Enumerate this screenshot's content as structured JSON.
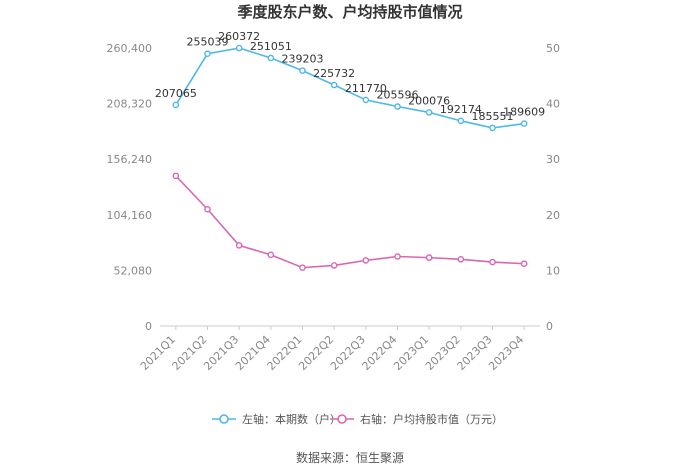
{
  "chart_data": {
    "type": "line",
    "title": "季度股东户数、户均持股市值情况",
    "categories": [
      "2021Q1",
      "2021Q2",
      "2021Q3",
      "2021Q4",
      "2022Q1",
      "2022Q2",
      "2022Q3",
      "2022Q4",
      "2023Q1",
      "2023Q2",
      "2023Q3",
      "2023Q4"
    ],
    "left_axis": {
      "ylim": [
        0,
        260400
      ],
      "ticks": [
        0,
        52080,
        104160,
        156240,
        208320,
        260400
      ],
      "tick_labels": [
        "0",
        "52,080",
        "104,160",
        "156,240",
        "208,320",
        "260,400"
      ]
    },
    "right_axis": {
      "ylim": [
        0,
        50
      ],
      "ticks": [
        0,
        10,
        20,
        30,
        40,
        50
      ],
      "tick_labels": [
        "0",
        "10",
        "20",
        "30",
        "40",
        "50"
      ]
    },
    "series": [
      {
        "name": "左轴：本期数（户）",
        "axis": "left",
        "color": "#4db8e8",
        "values": [
          207065,
          255039,
          260372,
          251051,
          239203,
          225732,
          211770,
          205596,
          200076,
          192174,
          185551,
          189609
        ],
        "labels": [
          "207065",
          "255039",
          "260372",
          "251051",
          "239203",
          "225732",
          "211770",
          "205596",
          "200076",
          "192174",
          "185551",
          "189609"
        ]
      },
      {
        "name": "右轴：户均持股市值（万元）",
        "axis": "right",
        "color": "#d966b3",
        "values": [
          27.0,
          21.0,
          14.5,
          12.8,
          10.5,
          10.9,
          11.8,
          12.5,
          12.3,
          12.0,
          11.5,
          11.2
        ]
      }
    ],
    "grid": false,
    "legend_position": "bottom"
  },
  "source": "数据来源：恒生聚源"
}
